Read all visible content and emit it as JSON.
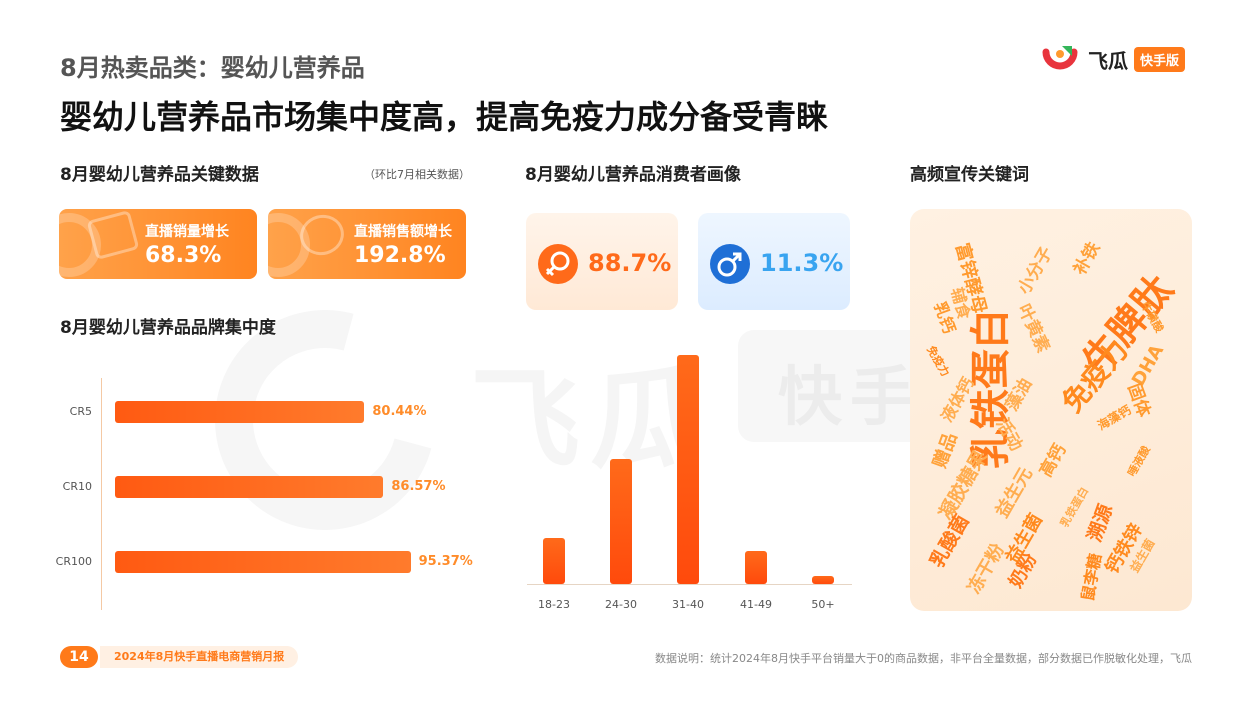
{
  "header": {
    "kicker": "8月热卖品类：婴幼儿营养品",
    "headline": "婴幼儿营养品市场集中度高，提高免疫力成分备受青睐"
  },
  "logo": {
    "name": "飞瓜",
    "badge": "快手版",
    "colors": [
      "#e8343d",
      "#34b65a",
      "#ff9a2e"
    ]
  },
  "watermark": {
    "text": "飞瓜",
    "badge": "快手版"
  },
  "key_data": {
    "title": "8月婴幼儿营养品关键数据",
    "note": "（环比7月相关数据）",
    "cards": [
      {
        "label": "直播销量增长",
        "value": "68.3%",
        "icon": "box-icon"
      },
      {
        "label": "直播销售额增长",
        "value": "192.8%",
        "icon": "yuan-coin-icon"
      }
    ]
  },
  "brand_concentration": {
    "title": "8月婴幼儿营养品品牌集中度",
    "chart_data": {
      "type": "bar",
      "orientation": "horizontal",
      "categories": [
        "CR5",
        "CR10",
        "CR100"
      ],
      "values": [
        80.44,
        86.57,
        95.37
      ],
      "labels": [
        "80.44%",
        "86.57%",
        "95.37%"
      ],
      "xlim": [
        0,
        100
      ],
      "grid": false
    }
  },
  "consumer_profile": {
    "title": "8月婴幼儿营养品消费者画像",
    "gender": [
      {
        "icon": "female-icon",
        "value": "88.7%",
        "color": "#ff6a1a"
      },
      {
        "icon": "male-icon",
        "value": "11.3%",
        "color": "#39a4f0"
      }
    ],
    "chart_data": {
      "type": "bar",
      "categories": [
        "18-23",
        "24-30",
        "31-40",
        "41-49",
        "50+"
      ],
      "values": [
        7,
        19,
        35,
        5,
        1.2
      ],
      "ylim": [
        0,
        36
      ],
      "grid": false
    }
  },
  "keywords": {
    "title": "高频宣传关键词",
    "words": [
      "乳铁蛋白",
      "牛脾肽",
      "免疫力",
      "DHA",
      "富锌酵母",
      "辅食",
      "小分子",
      "补铁",
      "叶黄素",
      "乳钙",
      "牛磺酸",
      "免疫力",
      "液体钙",
      "藻油",
      "海藻钙",
      "固体",
      "赠品",
      "活动",
      "凝胶糖果",
      "高钙",
      "益生元",
      "唾液酸",
      "乳铁蛋白",
      "乳酸菌",
      "益生菌",
      "冻干粉",
      "奶粉",
      "溯源",
      "钙铁锌",
      "益生菌",
      "鼠李糖"
    ]
  },
  "footer": {
    "page": "14",
    "report": "2024年8月快手直播电商营销月报",
    "note": "数据说明：统计2024年8月快手平台销量大于0的商品数据，非平台全量数据，部分数据已作脱敏化处理，飞瓜"
  }
}
